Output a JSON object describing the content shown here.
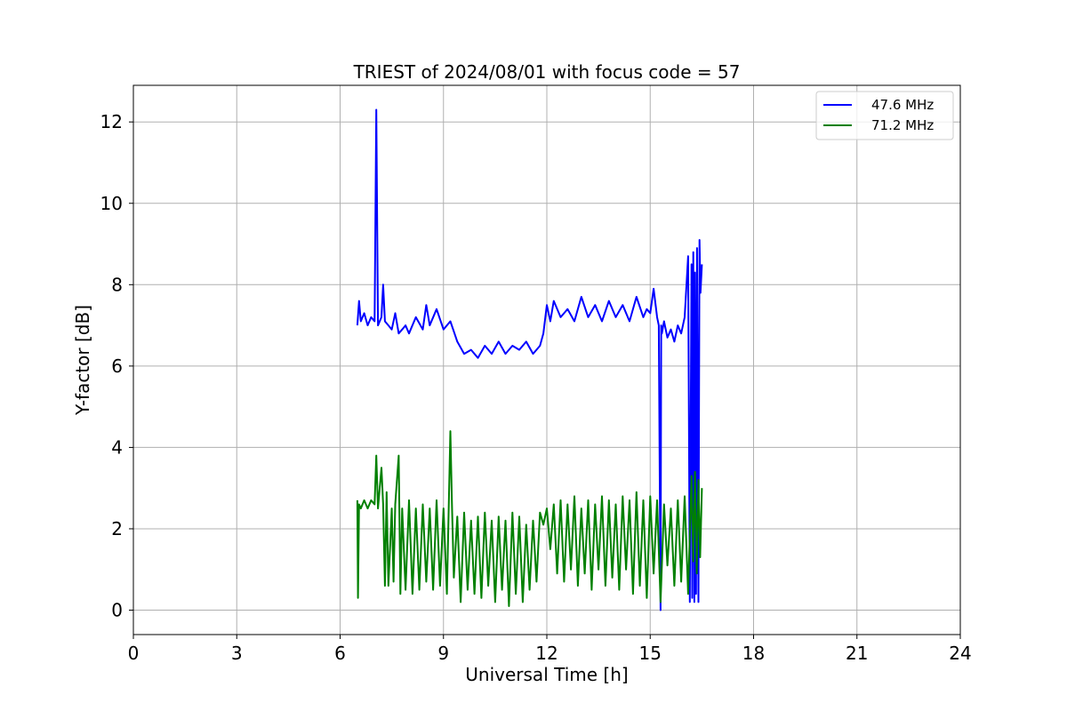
{
  "chart_data": {
    "type": "line",
    "title": "TRIEST of 2024/08/01 with focus code = 57",
    "xlabel": "Universal Time [h]",
    "ylabel": "Y-factor [dB]",
    "xlim": [
      0,
      24
    ],
    "ylim": [
      -0.6,
      12.9
    ],
    "xticks": [
      0,
      3,
      6,
      9,
      12,
      15,
      18,
      21,
      24
    ],
    "yticks": [
      0,
      2,
      4,
      6,
      8,
      10,
      12
    ],
    "grid": true,
    "legend_position": "top-right",
    "series": [
      {
        "name": "47.6 MHz",
        "color": "#0000ff",
        "x": [
          6.5,
          6.55,
          6.6,
          6.7,
          6.8,
          6.9,
          7.0,
          7.05,
          7.1,
          7.2,
          7.25,
          7.3,
          7.4,
          7.5,
          7.6,
          7.7,
          7.8,
          7.9,
          8.0,
          8.2,
          8.4,
          8.5,
          8.6,
          8.8,
          9.0,
          9.2,
          9.4,
          9.6,
          9.8,
          10.0,
          10.2,
          10.4,
          10.6,
          10.8,
          11.0,
          11.2,
          11.4,
          11.6,
          11.8,
          11.9,
          12.0,
          12.1,
          12.2,
          12.4,
          12.6,
          12.8,
          13.0,
          13.2,
          13.4,
          13.6,
          13.8,
          14.0,
          14.2,
          14.4,
          14.6,
          14.8,
          14.9,
          15.0,
          15.1,
          15.2,
          15.25,
          15.3,
          15.32,
          15.34,
          15.4,
          15.5,
          15.6,
          15.7,
          15.8,
          15.9,
          16.0,
          16.1,
          16.15,
          16.2,
          16.22,
          16.25,
          16.28,
          16.3,
          16.33,
          16.36,
          16.4,
          16.43,
          16.46,
          16.5
        ],
        "y": [
          7.0,
          7.6,
          7.1,
          7.3,
          7.0,
          7.2,
          7.1,
          12.3,
          7.0,
          7.2,
          8.0,
          7.1,
          7.0,
          6.9,
          7.3,
          6.8,
          6.9,
          7.0,
          6.8,
          7.2,
          6.9,
          7.5,
          7.0,
          7.4,
          6.9,
          7.1,
          6.6,
          6.3,
          6.4,
          6.2,
          6.5,
          6.3,
          6.6,
          6.3,
          6.5,
          6.4,
          6.6,
          6.3,
          6.5,
          6.8,
          7.5,
          7.1,
          7.6,
          7.2,
          7.4,
          7.1,
          7.7,
          7.2,
          7.5,
          7.1,
          7.6,
          7.2,
          7.5,
          7.1,
          7.7,
          7.2,
          7.4,
          7.3,
          7.9,
          7.2,
          7.0,
          0.0,
          7.0,
          6.8,
          7.1,
          6.7,
          6.9,
          6.6,
          7.0,
          6.8,
          7.2,
          8.7,
          0.2,
          8.5,
          0.3,
          8.8,
          0.2,
          8.3,
          0.4,
          8.9,
          0.2,
          9.1,
          7.8,
          8.5
        ]
      },
      {
        "name": "71.2 MHz",
        "color": "#008000",
        "x": [
          6.5,
          6.52,
          6.55,
          6.6,
          6.7,
          6.8,
          6.9,
          7.0,
          7.05,
          7.1,
          7.2,
          7.25,
          7.3,
          7.35,
          7.4,
          7.5,
          7.55,
          7.6,
          7.7,
          7.75,
          7.8,
          7.9,
          8.0,
          8.1,
          8.2,
          8.3,
          8.4,
          8.5,
          8.6,
          8.7,
          8.8,
          8.9,
          9.0,
          9.1,
          9.2,
          9.25,
          9.3,
          9.4,
          9.5,
          9.6,
          9.7,
          9.8,
          9.9,
          10.0,
          10.1,
          10.2,
          10.3,
          10.4,
          10.5,
          10.6,
          10.7,
          10.8,
          10.9,
          11.0,
          11.1,
          11.2,
          11.3,
          11.4,
          11.5,
          11.6,
          11.7,
          11.8,
          11.9,
          12.0,
          12.1,
          12.2,
          12.3,
          12.4,
          12.5,
          12.6,
          12.7,
          12.8,
          12.9,
          13.0,
          13.1,
          13.2,
          13.3,
          13.4,
          13.5,
          13.6,
          13.7,
          13.8,
          13.9,
          14.0,
          14.1,
          14.2,
          14.3,
          14.4,
          14.5,
          14.6,
          14.7,
          14.8,
          14.9,
          15.0,
          15.1,
          15.2,
          15.3,
          15.4,
          15.5,
          15.6,
          15.7,
          15.8,
          15.9,
          16.0,
          16.1,
          16.2,
          16.25,
          16.3,
          16.35,
          16.4,
          16.45,
          16.5
        ],
        "y": [
          2.7,
          0.3,
          2.6,
          2.5,
          2.7,
          2.5,
          2.7,
          2.6,
          3.8,
          2.5,
          3.5,
          2.6,
          0.6,
          2.9,
          0.6,
          2.5,
          0.7,
          2.6,
          3.8,
          0.4,
          2.5,
          0.5,
          2.7,
          0.4,
          2.5,
          0.5,
          2.6,
          0.7,
          2.5,
          0.5,
          2.7,
          0.6,
          2.5,
          0.4,
          4.4,
          2.5,
          0.8,
          2.3,
          0.2,
          2.4,
          0.5,
          2.2,
          0.4,
          2.3,
          0.3,
          2.4,
          0.6,
          2.2,
          0.2,
          2.3,
          0.5,
          2.2,
          0.1,
          2.4,
          0.4,
          2.3,
          0.2,
          2.1,
          0.5,
          2.2,
          0.7,
          2.4,
          2.1,
          2.5,
          1.5,
          2.6,
          0.9,
          2.7,
          0.7,
          2.6,
          1.0,
          2.8,
          0.6,
          2.5,
          0.9,
          2.7,
          0.5,
          2.6,
          1.0,
          2.8,
          0.6,
          2.7,
          0.8,
          2.6,
          0.5,
          2.8,
          1.0,
          2.7,
          0.4,
          2.9,
          0.6,
          2.7,
          0.3,
          2.8,
          0.9,
          2.7,
          0.2,
          2.6,
          1.1,
          2.5,
          0.6,
          2.7,
          0.7,
          2.8,
          0.4,
          3.3,
          1.2,
          3.4,
          0.9,
          3.2,
          1.3,
          3.0
        ]
      }
    ]
  }
}
